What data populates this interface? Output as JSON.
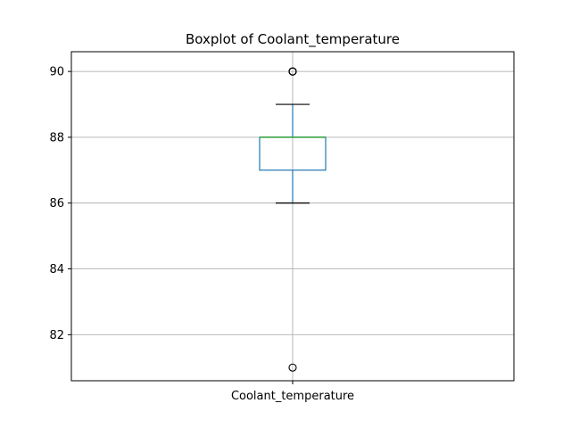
{
  "chart_data": {
    "type": "boxplot",
    "title": "Boxplot of Coolant_temperature",
    "xlabel": "",
    "ylabel": "",
    "categories": [
      "Coolant_temperature"
    ],
    "ylim": [
      80.6,
      90.6
    ],
    "yticks": [
      82,
      84,
      86,
      88,
      90
    ],
    "grid": true,
    "boxes": [
      {
        "name": "Coolant_temperature",
        "whisker_low": 86,
        "q1": 87,
        "median": 88,
        "q3": 88,
        "whisker_high": 89,
        "outliers": [
          90,
          90,
          90,
          81
        ]
      }
    ],
    "colors": {
      "box": "#1f77b4",
      "median": "#2ca02c",
      "whisker_cap": "#000000",
      "flier": "#000000",
      "grid": "#b0b0b0"
    }
  }
}
